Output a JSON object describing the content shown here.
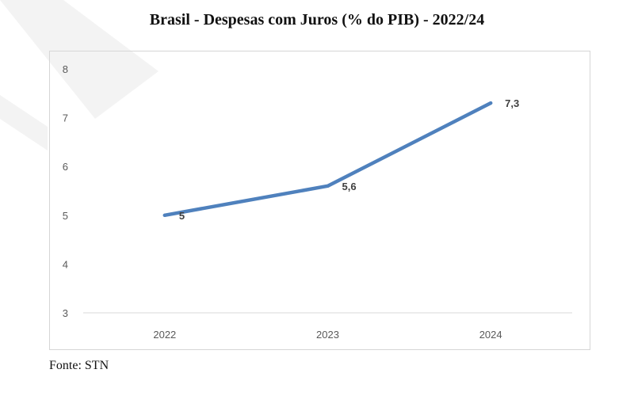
{
  "chart_data": {
    "type": "line",
    "title": "Brasil - Despesas com Juros (% do PIB) - 2022/24",
    "categories": [
      "2022",
      "2023",
      "2024"
    ],
    "series": [
      {
        "values": [
          5,
          5.6,
          7.3
        ],
        "labels": [
          "5",
          "5,6",
          "7,3"
        ],
        "color": "#4f81bd"
      }
    ],
    "ylim": [
      3,
      8
    ],
    "yticks": [
      3,
      4,
      5,
      6,
      7,
      8
    ],
    "xlabel": "",
    "ylabel": "",
    "grid": false,
    "legend": "none"
  },
  "colors": {
    "line": "#4f81bd",
    "axis": "#d9d9d9",
    "tick_text": "#595959",
    "watermark": "#f2f2f2"
  },
  "source_text": "Fonte: STN"
}
